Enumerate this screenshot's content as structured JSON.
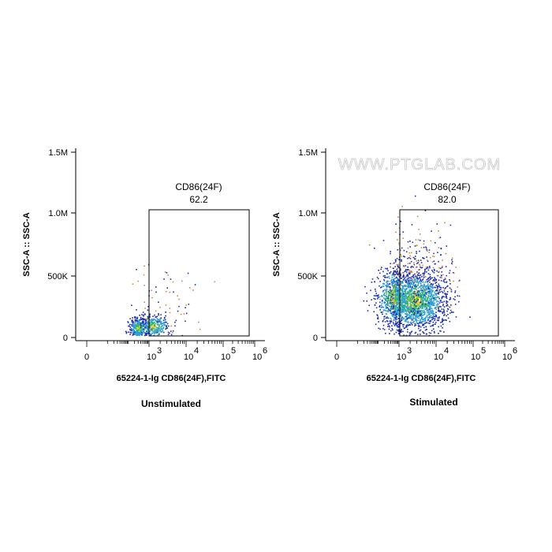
{
  "watermark": "WWW.PTGLAB.COM",
  "colors": {
    "density_low": "#1a2fb0",
    "density_mid": "#2f9fd1",
    "density_high": "#33c14a",
    "density_peak": "#e8d21c",
    "sparse": "#c98a4a",
    "axis": "#000000"
  },
  "chart_data": [
    {
      "type": "scatter",
      "title": "",
      "caption": "Unstimulated",
      "xlabel": "65224-1-Ig CD86(24F),FITC",
      "ylabel": "SSC-A :: SSC-A",
      "x_scale": "biexponential",
      "x_tick_labels": [
        "0",
        "10",
        "10",
        "10",
        "10"
      ],
      "x_tick_exponents": [
        "",
        "3",
        "4",
        "5",
        "6"
      ],
      "y_tick_labels": [
        "0",
        "500K",
        "1.0M",
        "1.5M"
      ],
      "ylim": [
        0,
        1500000
      ],
      "gate": {
        "name": "CD86(24F)",
        "value": "62.2",
        "x_min": 1000,
        "x_max": 600000,
        "y_min": 0,
        "y_max": 1020000
      },
      "populations": [
        {
          "x_center": 300,
          "y_center": 80000,
          "n": 320,
          "spread": "dense"
        },
        {
          "x_center": 1300,
          "y_center": 100000,
          "n": 260,
          "spread": "dense"
        },
        {
          "x_center": 2000,
          "y_center": 250000,
          "n": 80,
          "spread": "sparse"
        }
      ]
    },
    {
      "type": "scatter",
      "title": "",
      "caption": "Stimulated",
      "xlabel": "65224-1-Ig CD86(24F),FITC",
      "ylabel": "SSC-A :: SSC-A",
      "x_scale": "biexponential",
      "x_tick_labels": [
        "0",
        "10",
        "10",
        "10",
        "10"
      ],
      "x_tick_exponents": [
        "",
        "3",
        "4",
        "5",
        "6"
      ],
      "y_tick_labels": [
        "0",
        "500K",
        "1.0M",
        "1.5M"
      ],
      "ylim": [
        0,
        1500000
      ],
      "gate": {
        "name": "CD86(24F)",
        "value": "82.0",
        "x_min": 1000,
        "x_max": 600000,
        "y_min": 0,
        "y_max": 1020000
      },
      "populations": [
        {
          "x_center": 2500,
          "y_center": 300000,
          "n": 1800,
          "spread": "broad"
        },
        {
          "x_center": 500,
          "y_center": 330000,
          "n": 500,
          "spread": "broad"
        },
        {
          "x_center": 3000,
          "y_center": 550000,
          "n": 250,
          "spread": "sparse"
        }
      ]
    }
  ]
}
